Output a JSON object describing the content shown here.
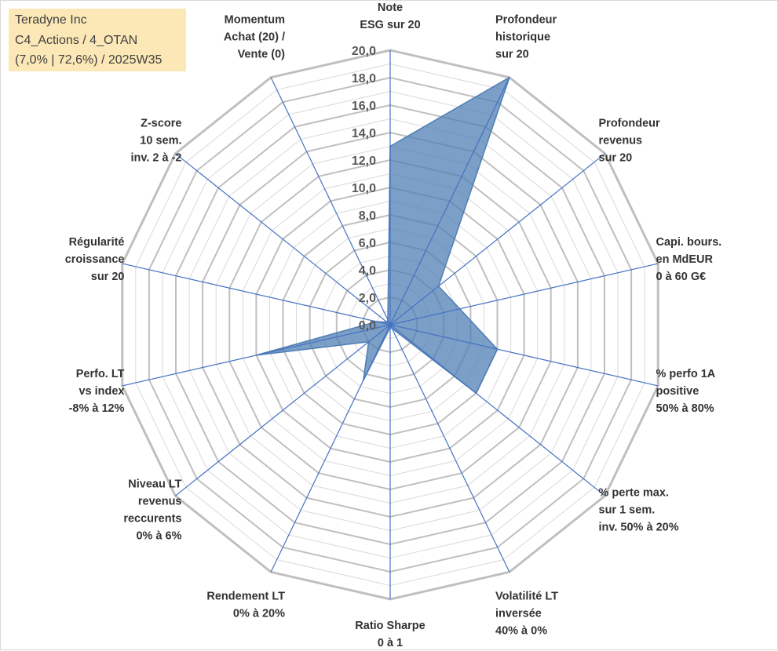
{
  "info_box": {
    "line1": "Teradyne Inc",
    "line2": "C4_Actions / 4_OTAN",
    "line3": "(7,0% | 72,6%) / 2025W35"
  },
  "colors": {
    "fill": "#4f7fb3",
    "spoke": "#4472c4",
    "grid_major": "#bfbfbf",
    "grid_minor": "#d9d9d9",
    "info_box_bg": "#fce8b6"
  },
  "chart_data": {
    "type": "radar",
    "title": "",
    "axes": [
      [
        "Note",
        "ESG sur 20"
      ],
      [
        "Profondeur",
        "historique",
        "sur 20"
      ],
      [
        "Profondeur",
        "revenus",
        "sur 20"
      ],
      [
        "Capi. bours.",
        "en MdEUR",
        "0 à 60 G€"
      ],
      [
        "% perfo 1A",
        "positive",
        "50% à 80%"
      ],
      [
        "% perte max.",
        "sur 1 sem.",
        "inv. 50% à 20%"
      ],
      [
        "Volatilité LT",
        "inversée",
        "40% à 0%"
      ],
      [
        "Ratio Sharpe",
        "0 à 1"
      ],
      [
        "Rendement LT",
        "0% à 20%"
      ],
      [
        "Niveau LT",
        "revenus",
        "reccurents",
        "0% à 6%"
      ],
      [
        "Perfo. LT",
        "vs index",
        "-8% à 12%"
      ],
      [
        "Régularité",
        "croissance",
        "sur 20"
      ],
      [
        "Z-score",
        "10 sem.",
        "inv. 2 à -2"
      ],
      [
        "Momentum",
        "Achat (20) /",
        "Vente (0)"
      ]
    ],
    "values": [
      13.0,
      20.0,
      4.5,
      5.2,
      8.0,
      8.0,
      0.3,
      0.2,
      4.5,
      2.0,
      10.0,
      1.0,
      0.3,
      0.4
    ],
    "rmin": 0,
    "rmax": 20,
    "tick_step": 2,
    "tick_labels": [
      "0,0",
      "2,0",
      "4,0",
      "6,0",
      "8,0",
      "10,0",
      "12,0",
      "14,0",
      "16,0",
      "18,0",
      "20,0"
    ],
    "grid": true,
    "legend": "none"
  }
}
